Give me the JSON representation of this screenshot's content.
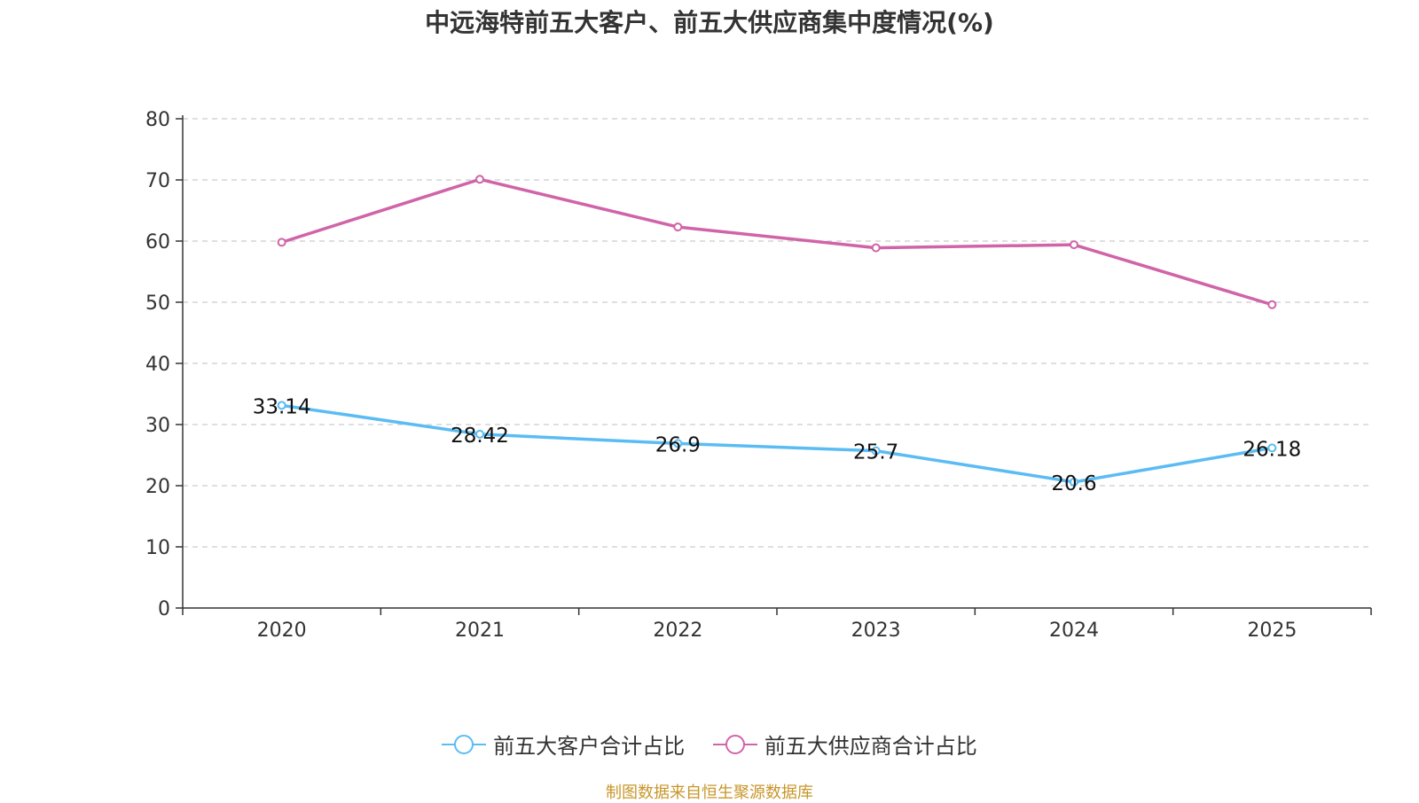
{
  "title": "中远海特前五大客户、前五大供应商集中度情况(%)",
  "source": "制图数据来自恒生聚源数据库",
  "colors": {
    "customers": "#5bbcf3",
    "suppliers": "#d064a8",
    "grid": "#cccccc",
    "axis": "#333333"
  },
  "chart_data": {
    "type": "line",
    "title": "中远海特前五大客户、前五大供应商集中度情况(%)",
    "categories": [
      "2020",
      "2021",
      "2022",
      "2023",
      "2024",
      "2025"
    ],
    "ylim": [
      0,
      80
    ],
    "yticks": [
      0,
      10,
      20,
      30,
      40,
      50,
      60,
      70,
      80
    ],
    "series": [
      {
        "name": "前五大客户合计占比",
        "values": [
          33.14,
          28.42,
          26.9,
          25.7,
          20.6,
          26.18
        ],
        "labels": [
          "33.14",
          "28.42",
          "26.9",
          "25.7",
          "20.6",
          "26.18"
        ],
        "show_labels": true
      },
      {
        "name": "前五大供应商合计占比",
        "values": [
          59.8,
          70.1,
          62.3,
          58.9,
          59.4,
          49.6
        ],
        "show_labels": false
      }
    ],
    "legend": "bottom-center",
    "grid": true
  }
}
